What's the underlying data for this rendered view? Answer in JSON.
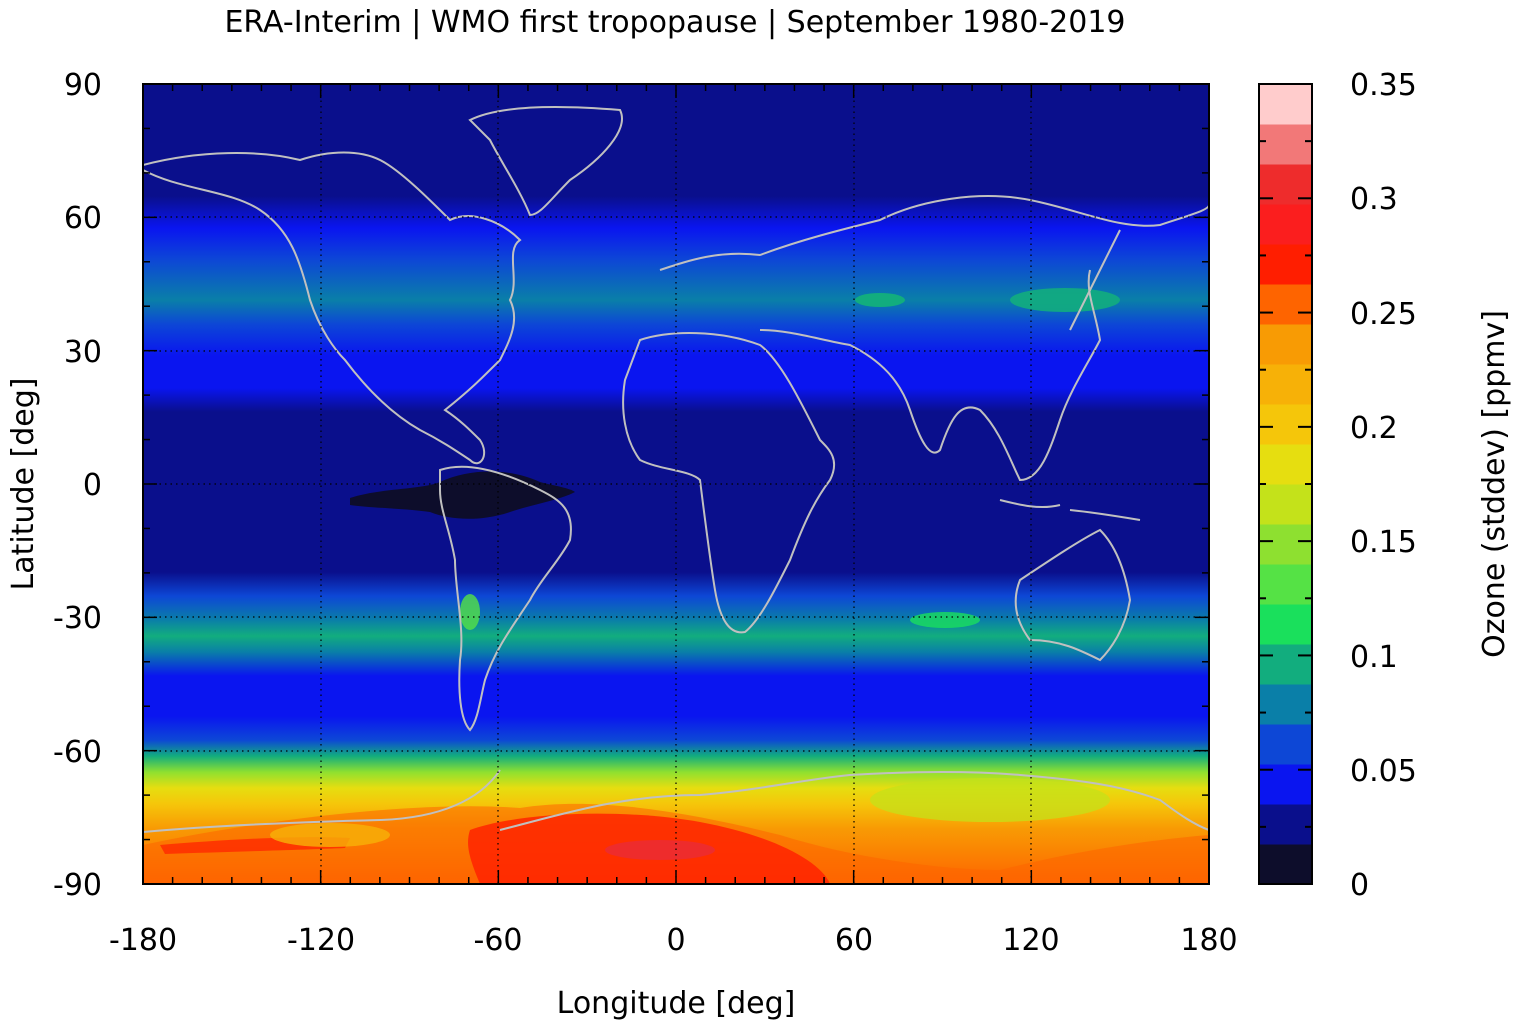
{
  "title": "ERA-Interim | WMO first tropopause | September 1980-2019",
  "chart_data": {
    "type": "heatmap",
    "title": "ERA-Interim | WMO first tropopause | September 1980-2019",
    "xlabel": "Longitude [deg]",
    "ylabel": "Latitude [deg]",
    "colorbar_label": "Ozone (stddev) [ppmv]",
    "xlim": [
      -180,
      180
    ],
    "ylim": [
      -90,
      90
    ],
    "x_ticks": [
      "-180",
      "-120",
      "-60",
      "0",
      "60",
      "120",
      "180"
    ],
    "y_ticks": [
      "-90",
      "-60",
      "-30",
      "0",
      "30",
      "60",
      "90"
    ],
    "grid": true,
    "colorbar": {
      "range": [
        0,
        0.35
      ],
      "levels": 21,
      "tick_labels": [
        "0",
        "0.05",
        "0.1",
        "0.15",
        "0.2",
        "0.25",
        "0.3",
        "0.35"
      ],
      "colors": [
        "#0d0d2b",
        "#0a0f8c",
        "#0a15f0",
        "#0d47d6",
        "#0a7fa8",
        "#12ad7e",
        "#1ae05c",
        "#55e245",
        "#8ee030",
        "#c4e21a",
        "#e6de10",
        "#f5c60a",
        "#f7b107",
        "#f89b04",
        "#fe6400",
        "#ff1e00",
        "#fb1e1e",
        "#ee2c2c",
        "#f27878",
        "#ffcccc"
      ]
    },
    "zonal_profile_note": "",
    "zonal_profile": [
      {
        "lat": -90,
        "value": 0.27
      },
      {
        "lat": -84,
        "value": 0.27
      },
      {
        "lat": -78,
        "value": 0.25
      },
      {
        "lat": -72,
        "value": 0.2
      },
      {
        "lat": -66,
        "value": 0.14
      },
      {
        "lat": -62,
        "value": 0.08
      },
      {
        "lat": -58,
        "value": 0.05
      },
      {
        "lat": -50,
        "value": 0.04
      },
      {
        "lat": -42,
        "value": 0.05
      },
      {
        "lat": -36,
        "value": 0.07
      },
      {
        "lat": -30,
        "value": 0.09
      },
      {
        "lat": -24,
        "value": 0.05
      },
      {
        "lat": -18,
        "value": 0.025
      },
      {
        "lat": 0,
        "value": 0.015
      },
      {
        "lat": 18,
        "value": 0.02
      },
      {
        "lat": 26,
        "value": 0.04
      },
      {
        "lat": 34,
        "value": 0.06
      },
      {
        "lat": 42,
        "value": 0.075
      },
      {
        "lat": 50,
        "value": 0.06
      },
      {
        "lat": 58,
        "value": 0.04
      },
      {
        "lat": 66,
        "value": 0.025
      },
      {
        "lat": 90,
        "value": 0.02
      }
    ]
  }
}
